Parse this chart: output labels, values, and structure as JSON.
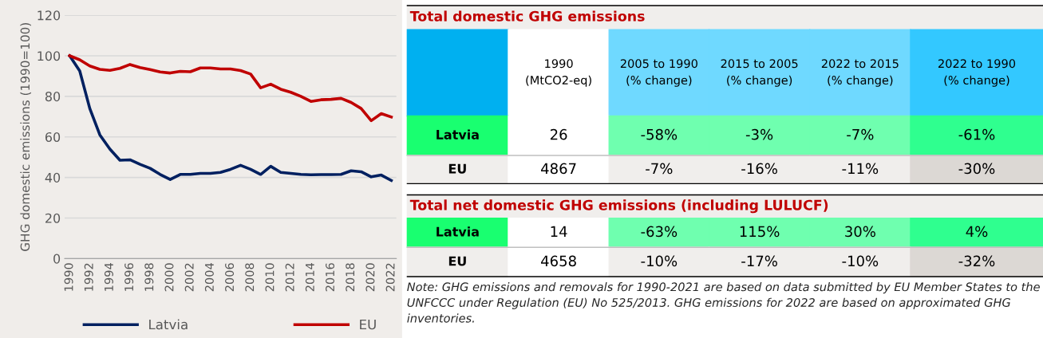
{
  "chart_data": [
    {
      "type": "line",
      "ylabel": "GHG domestic emissions (1990=100)",
      "x": [
        1990,
        1991,
        1992,
        1993,
        1994,
        1995,
        1996,
        1997,
        1998,
        1999,
        2000,
        2001,
        2002,
        2003,
        2004,
        2005,
        2006,
        2007,
        2008,
        2009,
        2010,
        2011,
        2012,
        2013,
        2014,
        2015,
        2016,
        2017,
        2018,
        2019,
        2020,
        2021,
        2022
      ],
      "series": [
        {
          "name": "Latvia",
          "color": "#002060",
          "values": [
            100,
            92.5,
            74,
            61,
            54,
            48.5,
            48.7,
            46.5,
            44.5,
            41.5,
            39,
            41.5,
            41.5,
            42,
            42,
            42.5,
            44,
            46,
            44,
            41.5,
            45.5,
            42.5,
            42,
            41.5,
            41.3,
            41.4,
            41.4,
            41.5,
            43.3,
            42.8,
            40.3,
            41.2,
            38.5
          ]
        },
        {
          "name": "EU",
          "color": "#c00000",
          "values": [
            100,
            98,
            95,
            93.3,
            92.8,
            93.8,
            95.7,
            94.2,
            93.2,
            92,
            91.5,
            92.3,
            92.1,
            94,
            94,
            93.5,
            93.5,
            92.7,
            91,
            84.2,
            86,
            83.5,
            82,
            80,
            77.5,
            78.3,
            78.5,
            79,
            77,
            74,
            68,
            71.5,
            69.8
          ]
        }
      ],
      "xlim": [
        1989.5,
        2022.5
      ],
      "xticks": [
        1990,
        1992,
        1994,
        1996,
        1998,
        2000,
        2002,
        2004,
        2006,
        2008,
        2010,
        2012,
        2014,
        2016,
        2018,
        2020,
        2022
      ],
      "ylim": [
        0,
        120
      ],
      "yticks": [
        0,
        20,
        40,
        60,
        80,
        100,
        120
      ],
      "grid": "y",
      "legend": "bottom",
      "line_style": "solid",
      "marker": "none"
    },
    {
      "type": "other",
      "title": "Total domestic GHG emissions",
      "categories": [
        null,
        "1990\n(MtCO2-eq)",
        "2005 to 1990\n(% change)",
        "2015 to 2005\n(% change)",
        "2022 to 2015\n(% change)",
        "2022 to 1990\n(% change)"
      ],
      "y_categories": [
        "Latvia",
        "EU"
      ],
      "cell_labels": [
        [
          "26",
          "-58%",
          "-3%",
          "-7%",
          "-61%"
        ],
        [
          "4867",
          "-7%",
          "-16%",
          "-11%",
          "-30%"
        ]
      ],
      "colors": [
        [
          "#00b0f0",
          "#ffffff",
          "#6fd9ff",
          "#6fd9ff",
          "#6fd9ff",
          "#33c8ff"
        ],
        [
          "#19ff70",
          "#ffffff",
          "#6fffaf",
          "#6fffaf",
          "#6fffaf",
          "#2fff8f"
        ],
        [
          "#f0eeec",
          "#ffffff",
          "#f0eeec",
          "#f0eeec",
          "#f0eeec",
          "#dcd8d4"
        ]
      ]
    },
    {
      "type": "other",
      "title": "Total net domestic GHG emissions (including LULUCF)",
      "y_categories": [
        "Latvia",
        "EU"
      ],
      "cell_labels": [
        [
          "14",
          "-63%",
          "115%",
          "30%",
          "4%"
        ],
        [
          "4658",
          "-10%",
          "-17%",
          "-10%",
          "-32%"
        ]
      ],
      "colors": [
        [
          "#19ff70",
          "#ffffff",
          "#6fffaf",
          "#6fffaf",
          "#6fffaf",
          "#2fff8f"
        ],
        [
          "#f0eeec",
          "#ffffff",
          "#f0eeec",
          "#f0eeec",
          "#f0eeec",
          "#dcd8d4"
        ]
      ],
      "annotations": [
        "Note: GHG emissions and removals for 1990-2021 are based on data submitted by EU Member States to the UNFCCC under Regulation (EU) No 525/2013. GHG emissions for 2022 are based on approximated GHG inventories."
      ]
    }
  ]
}
